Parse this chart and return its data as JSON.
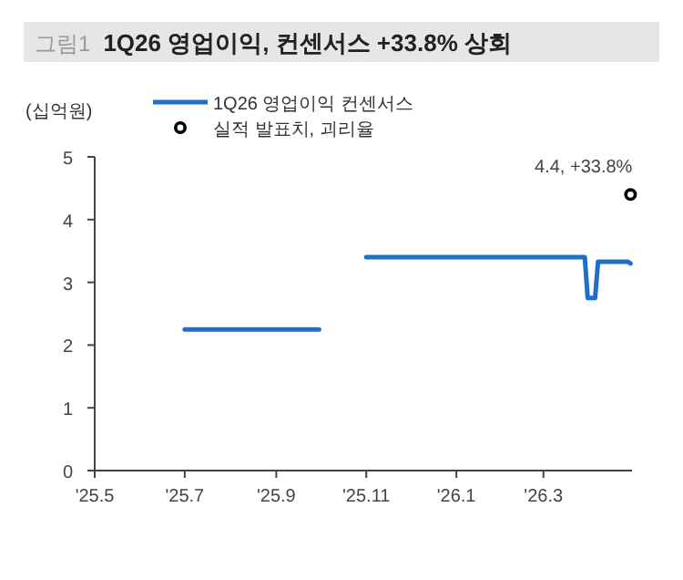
{
  "chart_data": {
    "type": "line",
    "title": "1Q26 영업이익, 컨센서스 +33.8% 상회",
    "ylabel": "(십억원)",
    "annotations": [
      "그림1",
      {
        "text": "4.4, +33.8%",
        "x": "2026-04-29",
        "y": 4.4
      }
    ],
    "series": [
      {
        "name": "1Q26 영업이익 컨센서스",
        "color": "#1f6fc8",
        "line_style": "solid",
        "marker": "none",
        "x": [
          "2025-07-01",
          "2025-09-30"
        ],
        "values": [
          2.25,
          2.25
        ]
      },
      {
        "color": "#1f6fc8",
        "line_style": "solid",
        "marker": "none",
        "x": [
          "2025-11-01",
          "2026-03-29",
          "2026-03-31",
          "2026-04-05",
          "2026-04-07",
          "2026-04-27",
          "2026-04-29"
        ],
        "values": [
          3.4,
          3.4,
          2.75,
          2.75,
          3.33,
          3.33,
          3.3
        ]
      },
      {
        "name": "실적 발표치, 괴리율",
        "type": "scatter",
        "color": "#000000",
        "marker": "circle",
        "x": [
          "2026-04-29"
        ],
        "values": [
          4.4
        ]
      }
    ],
    "xlim": [
      "2025-05-01",
      "2026-04-30"
    ],
    "xticks": [
      {
        "value": "2025-05-01",
        "label": "'25.5"
      },
      {
        "value": "2025-07-01",
        "label": "'25.7"
      },
      {
        "value": "2025-09-01",
        "label": "'25.9"
      },
      {
        "value": "2025-11-01",
        "label": "'25.11"
      },
      {
        "value": "2026-01-01",
        "label": "'26.1"
      },
      {
        "value": "2026-03-01",
        "label": "'26.3"
      }
    ],
    "ylim": [
      0,
      5
    ],
    "yticks": [
      0,
      1,
      2,
      3,
      4,
      5
    ],
    "grid": false,
    "legend": "top"
  }
}
